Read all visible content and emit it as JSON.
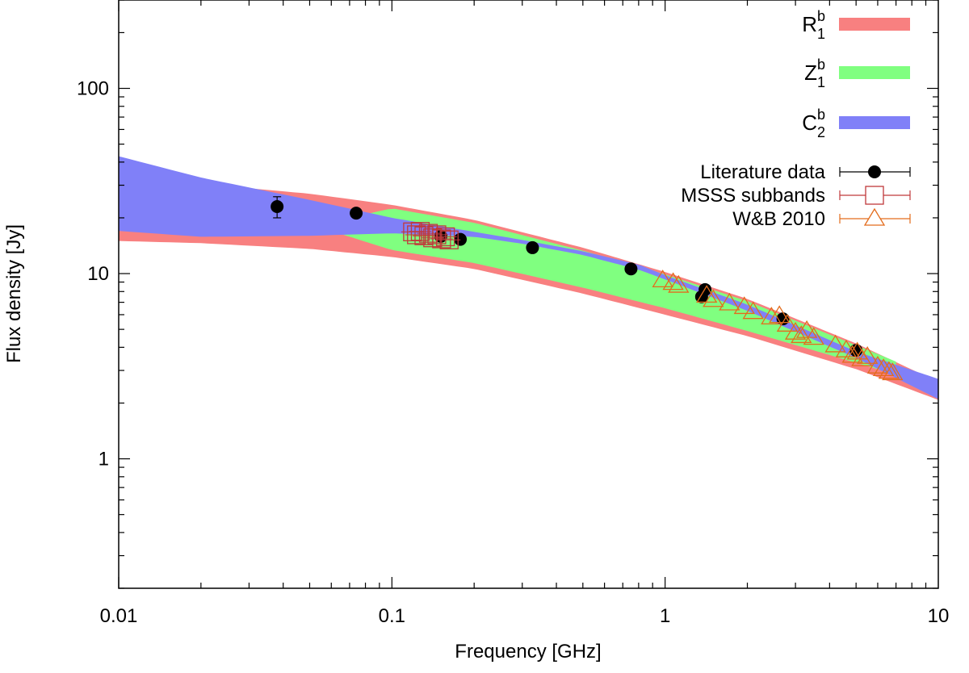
{
  "chart_data": {
    "type": "scatter",
    "title": "",
    "xlabel": "Frequency [GHz]",
    "ylabel": "Flux density [Jy]",
    "xscale": "log",
    "yscale": "log",
    "xlim": [
      0.01,
      10
    ],
    "ylim": [
      0.2,
      300
    ],
    "grid": false,
    "legend_position": "top-right",
    "x_ticks": [
      {
        "value": 0.01,
        "label": "0.01"
      },
      {
        "value": 0.1,
        "label": "0.1"
      },
      {
        "value": 1,
        "label": "1"
      },
      {
        "value": 10,
        "label": "10"
      }
    ],
    "y_ticks": [
      {
        "value": 1,
        "label": "1"
      },
      {
        "value": 10,
        "label": "10"
      },
      {
        "value": 100,
        "label": "100"
      }
    ],
    "bands": [
      {
        "name": "R1b",
        "legend_base": "R",
        "legend_sub": "1",
        "legend_sup": "b",
        "color": "#f88080",
        "x": [
          0.01,
          0.02,
          0.05,
          0.1,
          0.2,
          0.5,
          1,
          2,
          5,
          10
        ],
        "lower": [
          15.0,
          14.6,
          13.6,
          12.3,
          10.6,
          7.8,
          6.0,
          4.6,
          3.05,
          2.08
        ],
        "upper": [
          34.0,
          30.5,
          27.0,
          23.5,
          19.5,
          13.8,
          10.2,
          7.3,
          4.2,
          2.6
        ]
      },
      {
        "name": "Z1b",
        "legend_base": "Z",
        "legend_sub": "1",
        "legend_sup": "b",
        "color": "#80ff80",
        "x": [
          0.06,
          0.1,
          0.2,
          0.5,
          1,
          2,
          5,
          7
        ],
        "lower": [
          17.0,
          13.4,
          11.4,
          8.4,
          6.5,
          4.9,
          3.3,
          2.85
        ],
        "upper": [
          19.0,
          22.5,
          18.8,
          13.3,
          9.9,
          7.1,
          4.1,
          3.35
        ]
      },
      {
        "name": "C2b",
        "legend_base": "C",
        "legend_sub": "2",
        "legend_sup": "b",
        "color": "#8080f8",
        "x": [
          0.01,
          0.02,
          0.05,
          0.1,
          0.2,
          0.3,
          0.5,
          0.8,
          1,
          2,
          5,
          10
        ],
        "lower": [
          17.0,
          15.8,
          16.0,
          16.5,
          15.8,
          14.5,
          12.6,
          10.5,
          9.3,
          6.3,
          3.5,
          2.1
        ],
        "upper": [
          43.0,
          33.0,
          25.0,
          20.0,
          16.8,
          15.2,
          13.2,
          11.2,
          9.8,
          6.8,
          3.8,
          2.7
        ]
      }
    ],
    "series": [
      {
        "name": "Literature data",
        "marker": "filled-circle",
        "color": "#000000",
        "points": [
          {
            "x": 0.038,
            "y": 23.0,
            "err_low": 20.0,
            "err_high": 26.0
          },
          {
            "x": 0.074,
            "y": 21.2
          },
          {
            "x": 0.151,
            "y": 15.9
          },
          {
            "x": 0.178,
            "y": 15.3
          },
          {
            "x": 0.327,
            "y": 13.8
          },
          {
            "x": 0.75,
            "y": 10.6
          },
          {
            "x": 1.36,
            "y": 7.5
          },
          {
            "x": 1.4,
            "y": 8.2
          },
          {
            "x": 2.7,
            "y": 5.7
          },
          {
            "x": 5.0,
            "y": 3.85
          }
        ]
      },
      {
        "name": "MSSS subbands",
        "marker": "open-square",
        "color": "#c0393b",
        "points": [
          {
            "x": 0.119,
            "y": 16.8
          },
          {
            "x": 0.123,
            "y": 16.2
          },
          {
            "x": 0.127,
            "y": 16.9
          },
          {
            "x": 0.131,
            "y": 16.0
          },
          {
            "x": 0.136,
            "y": 16.5
          },
          {
            "x": 0.141,
            "y": 15.6
          },
          {
            "x": 0.146,
            "y": 16.2
          },
          {
            "x": 0.152,
            "y": 15.4
          },
          {
            "x": 0.157,
            "y": 15.8
          },
          {
            "x": 0.162,
            "y": 15.2
          }
        ]
      },
      {
        "name": "W&B 2010",
        "marker": "open-triangle",
        "color": "#e36c1c",
        "points": [
          {
            "x": 0.98,
            "y": 9.2
          },
          {
            "x": 1.07,
            "y": 8.9
          },
          {
            "x": 1.12,
            "y": 8.6
          },
          {
            "x": 1.42,
            "y": 7.6
          },
          {
            "x": 1.5,
            "y": 7.2
          },
          {
            "x": 1.72,
            "y": 6.9
          },
          {
            "x": 1.95,
            "y": 6.6
          },
          {
            "x": 2.1,
            "y": 6.2
          },
          {
            "x": 2.45,
            "y": 5.8
          },
          {
            "x": 2.62,
            "y": 5.9
          },
          {
            "x": 2.8,
            "y": 5.3
          },
          {
            "x": 3.0,
            "y": 4.8
          },
          {
            "x": 3.15,
            "y": 4.6
          },
          {
            "x": 3.3,
            "y": 4.9
          },
          {
            "x": 3.5,
            "y": 4.5
          },
          {
            "x": 4.2,
            "y": 4.1
          },
          {
            "x": 4.6,
            "y": 3.85
          },
          {
            "x": 4.85,
            "y": 3.6
          },
          {
            "x": 5.05,
            "y": 3.75
          },
          {
            "x": 5.25,
            "y": 3.45
          },
          {
            "x": 5.5,
            "y": 3.55
          },
          {
            "x": 6.0,
            "y": 3.15
          },
          {
            "x": 6.3,
            "y": 3.05
          },
          {
            "x": 6.6,
            "y": 2.95
          },
          {
            "x": 6.8,
            "y": 2.9
          }
        ]
      }
    ]
  }
}
